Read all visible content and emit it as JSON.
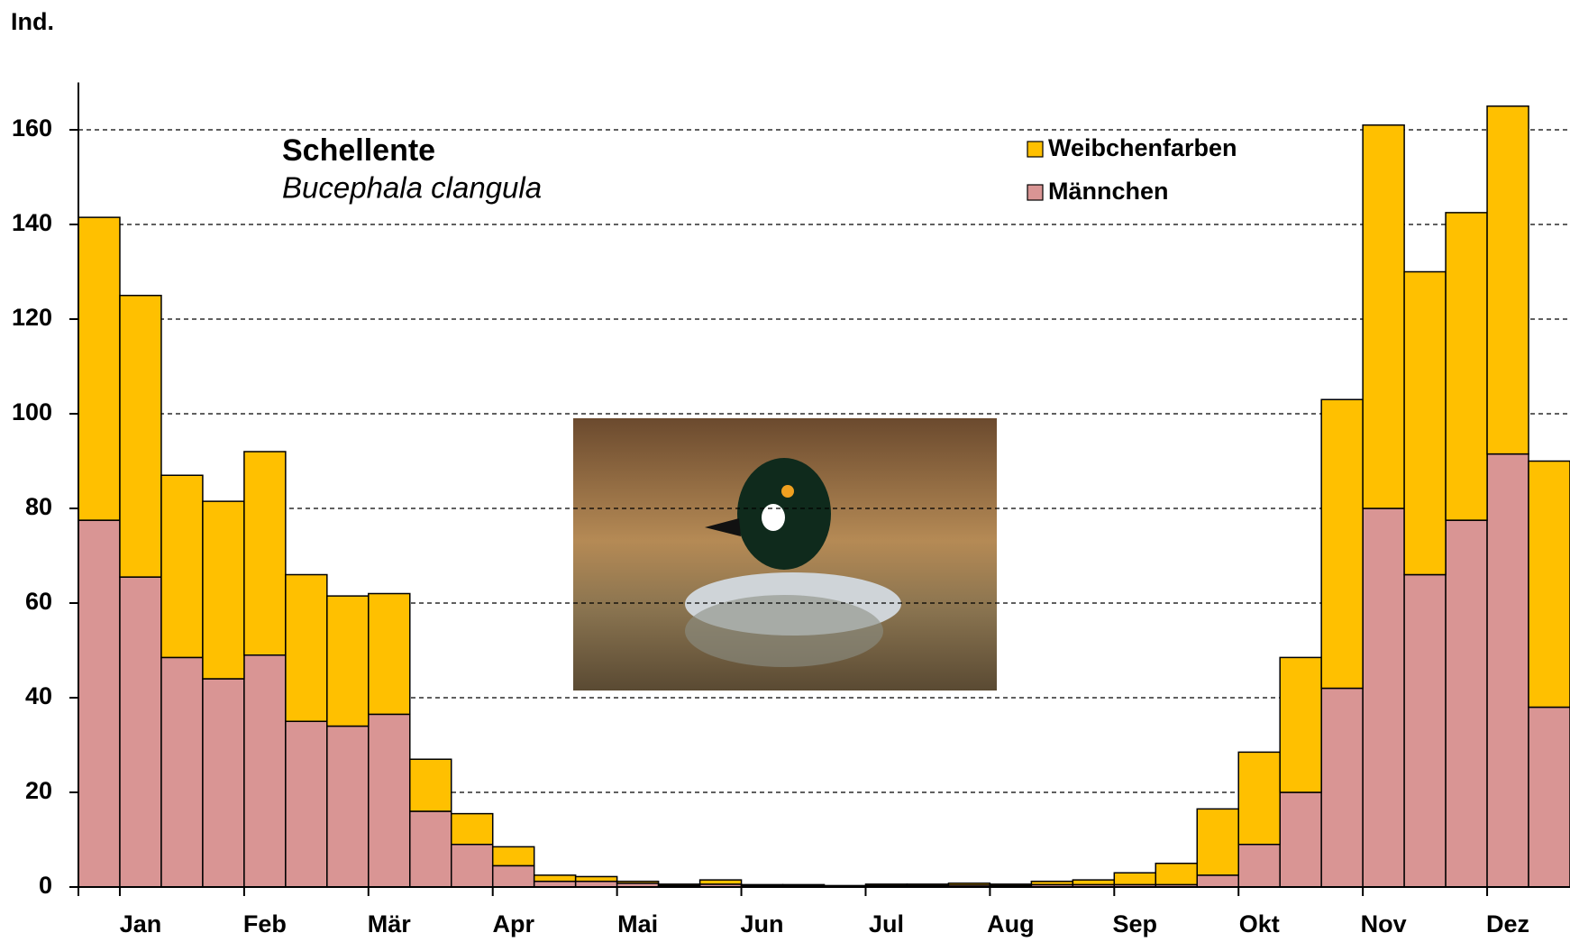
{
  "chart_data": {
    "type": "stacked-bar",
    "title": "Schellente",
    "subtitle": "Bucephala clangula",
    "y_label": "Ind.",
    "categories": [
      null,
      "Jan",
      null,
      null,
      "Feb",
      null,
      null,
      "Mär",
      null,
      null,
      "Apr",
      null,
      null,
      "Mai",
      null,
      null,
      "Jun",
      null,
      null,
      "Jul",
      null,
      null,
      "Aug",
      null,
      null,
      "Sep",
      null,
      null,
      "Okt",
      null,
      null,
      "Nov",
      null,
      null,
      "Dez",
      null
    ],
    "series": [
      {
        "name": "Männchen",
        "color": "#d99594",
        "values": [
          77.5,
          65.5,
          48.5,
          44,
          49,
          35,
          34,
          36.5,
          16,
          9,
          4.5,
          1.2,
          1.2,
          0.8,
          0.3,
          0.6,
          0.3,
          0.3,
          0.2,
          0.3,
          0.3,
          0.4,
          0.3,
          0.5,
          0.5,
          0.5,
          0.5,
          2.5,
          9,
          20,
          42,
          80,
          66,
          77.5,
          91.5,
          38
        ]
      },
      {
        "name": "Weibchenfarben",
        "color": "#ffc000",
        "values": [
          64,
          59.5,
          38.5,
          37.5,
          43,
          31,
          27.5,
          25.5,
          11,
          6.5,
          4,
          1.3,
          1,
          0.4,
          0.3,
          0.9,
          0.2,
          0.2,
          0.1,
          0.3,
          0.3,
          0.4,
          0.3,
          0.7,
          1,
          2.5,
          4.5,
          14,
          19.5,
          28.5,
          61,
          81,
          64,
          65,
          73.5,
          52
        ]
      }
    ],
    "ylim": [
      0,
      170
    ],
    "yticks": [
      0,
      20,
      40,
      60,
      80,
      100,
      120,
      140,
      160
    ],
    "grid": true,
    "legend": "top-right"
  }
}
